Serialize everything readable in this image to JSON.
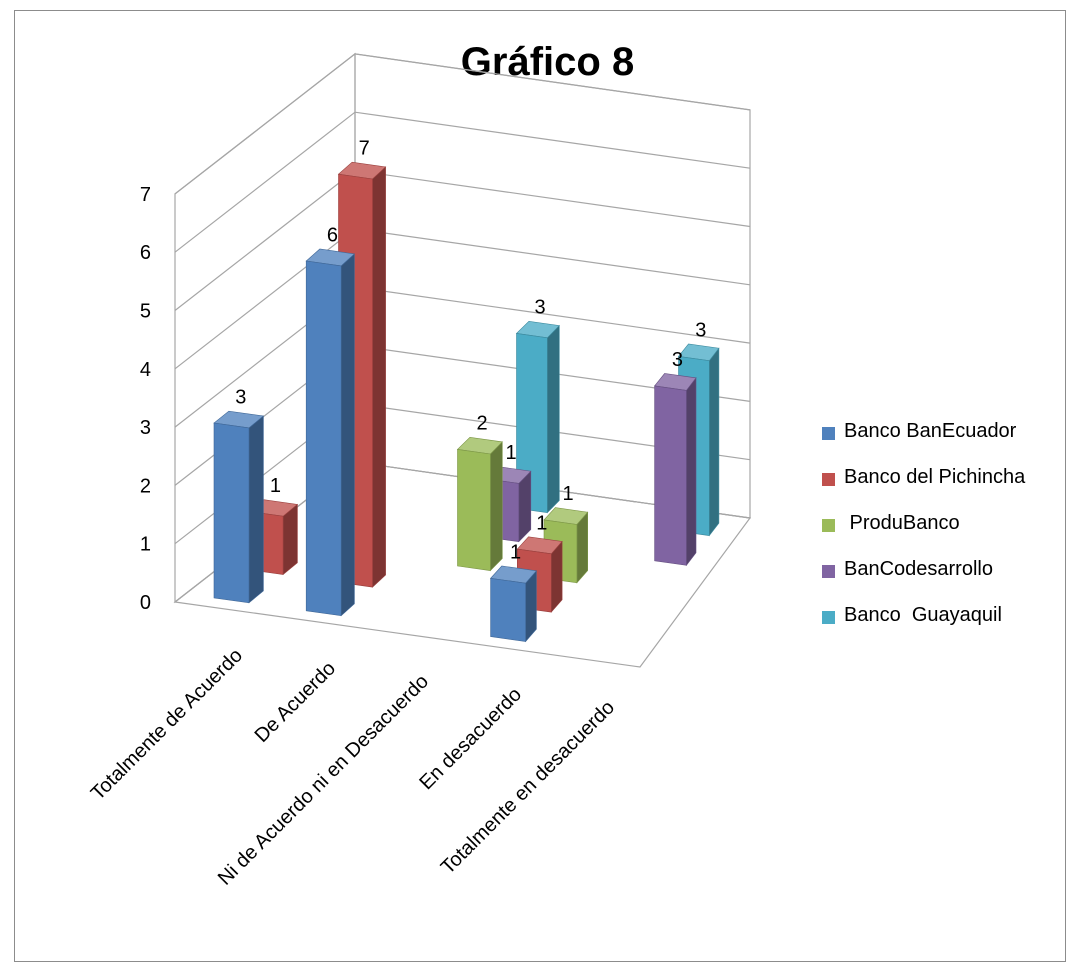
{
  "chart_data": {
    "type": "bar",
    "title": "Gráfico 8",
    "categories": [
      "Totalmente de Acuerdo",
      "De Acuerdo",
      "Ni de Acuerdo ni en Desacuerdo",
      "En desacuerdo",
      "Totalmente en desacuerdo"
    ],
    "series": [
      {
        "name": "Banco BanEcuador",
        "color": "#4F81BD",
        "values": [
          3,
          6,
          null,
          1,
          null
        ]
      },
      {
        "name": "Banco del Pichincha",
        "color": "#C0504D",
        "values": [
          1,
          7,
          null,
          1,
          null
        ]
      },
      {
        "name": " ProduBanco",
        "color": "#9BBB59",
        "values": [
          null,
          null,
          2,
          1,
          null
        ]
      },
      {
        "name": "BanCodesarrollo",
        "color": "#8064A2",
        "values": [
          null,
          null,
          1,
          null,
          3
        ]
      },
      {
        "name": "Banco  Guayaquil",
        "color": "#4BACC6",
        "values": [
          null,
          null,
          3,
          null,
          3
        ]
      }
    ],
    "y_ticks": [
      0,
      1,
      2,
      3,
      4,
      5,
      6,
      7
    ],
    "ylim": [
      0,
      7
    ],
    "grid": true,
    "legend_position": "right",
    "projection": "3d-clustered-column"
  }
}
